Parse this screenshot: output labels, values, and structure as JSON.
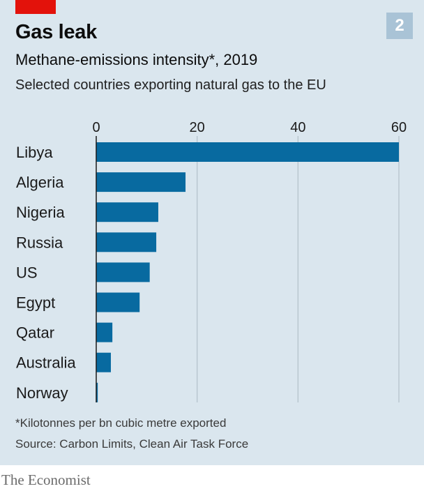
{
  "header": {
    "title": "Gas leak",
    "subtitle": "Methane-emissions intensity*, 2019",
    "description": "Selected countries exporting natural gas to the EU",
    "badge": "2"
  },
  "footer": {
    "footnote": "*Kilotonnes per bn cubic metre exported",
    "source": "Source: Carbon Limits, Clean Air Task Force",
    "brand": "The Economist"
  },
  "colors": {
    "bar": "#086aa0",
    "background": "#dae6ee",
    "accent": "#e3120b",
    "badge": "#a9c3d6",
    "grid": "#b9c7d0"
  },
  "chart_data": {
    "type": "bar",
    "orientation": "horizontal",
    "categories": [
      "Libya",
      "Algeria",
      "Nigeria",
      "Russia",
      "US",
      "Egypt",
      "Qatar",
      "Australia",
      "Norway"
    ],
    "values": [
      60,
      17.7,
      12.3,
      11.9,
      10.6,
      8.6,
      3.2,
      2.9,
      0.3
    ],
    "xlim": [
      0,
      60
    ],
    "xticks": [
      0,
      20,
      40,
      60
    ],
    "tick_labels": [
      "0",
      "20",
      "40",
      "60"
    ],
    "axis_position": "top",
    "grid": true
  }
}
